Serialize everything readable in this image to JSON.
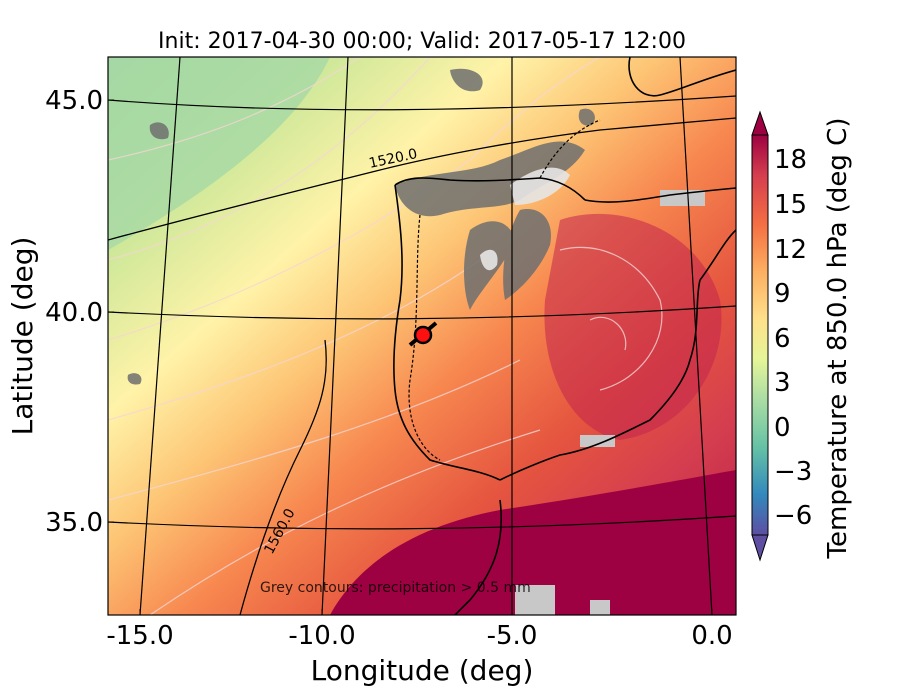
{
  "title": "Init: 2017-04-30 00:00; Valid: 2017-05-17 12:00",
  "axes": {
    "xlabel": "Longitude (deg)",
    "ylabel": "Latitude (deg)",
    "xticks": [
      "-15.0",
      "-10.0",
      "-5.0",
      "0.0"
    ],
    "yticks": [
      "45.0",
      "40.0",
      "35.0"
    ]
  },
  "contour_labels": [
    "1520.0",
    "1560.0"
  ],
  "footnote": "Grey contours: precipitation > 0.5 mm",
  "colorbar": {
    "label": "Temperature at 850.0 hPa (deg C)",
    "ticks": [
      "18",
      "15",
      "12",
      "9",
      "6",
      "3",
      "0",
      "−3",
      "−6"
    ]
  },
  "colors": {
    "sea_dark": "#9e0142",
    "warm": "#e8604a",
    "mild": "#fdbe6e",
    "cool": "#fee89a",
    "cold": "#a8d9a4",
    "precip_grey": "#c8c8c8"
  },
  "marker": {
    "name": "red-circle-marker"
  }
}
